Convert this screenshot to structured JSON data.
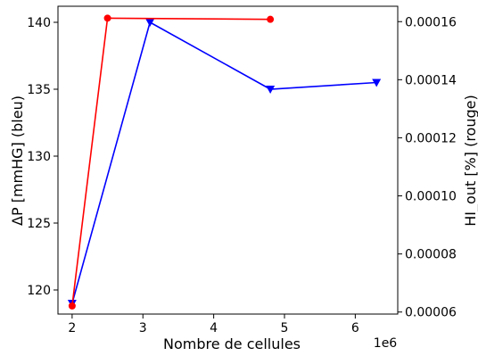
{
  "chart_data": {
    "type": "line",
    "xlabel": "Nombre de cellules",
    "x_offset_label": "1e6",
    "ylabel_left": "ΔP [mmHG] (bleu)",
    "ylabel_right": "HI_out [%] (rouge)",
    "xlim": [
      1.8,
      6.6
    ],
    "ylim_left": [
      118.2,
      141.2
    ],
    "ylim_right": [
      5.93e-05,
      0.0001653
    ],
    "x_ticks": [
      "2",
      "3",
      "4",
      "5",
      "6"
    ],
    "y_ticks_left": [
      "120",
      "125",
      "130",
      "135",
      "140"
    ],
    "y_ticks_right": [
      "0.00006",
      "0.00008",
      "0.00010",
      "0.00012",
      "0.00014",
      "0.00016"
    ],
    "series": [
      {
        "axis": "left",
        "color": "#0000ff",
        "marker": "triangle-down",
        "x": [
          2.0,
          3.1,
          4.8,
          6.3
        ],
        "y": [
          119.0,
          140.0,
          135.0,
          135.5
        ]
      },
      {
        "axis": "right",
        "color": "#ff0000",
        "marker": "circle",
        "x": [
          2.0,
          2.5,
          4.8
        ],
        "y": [
          6.21e-05,
          0.0001612,
          0.0001608
        ]
      }
    ]
  }
}
